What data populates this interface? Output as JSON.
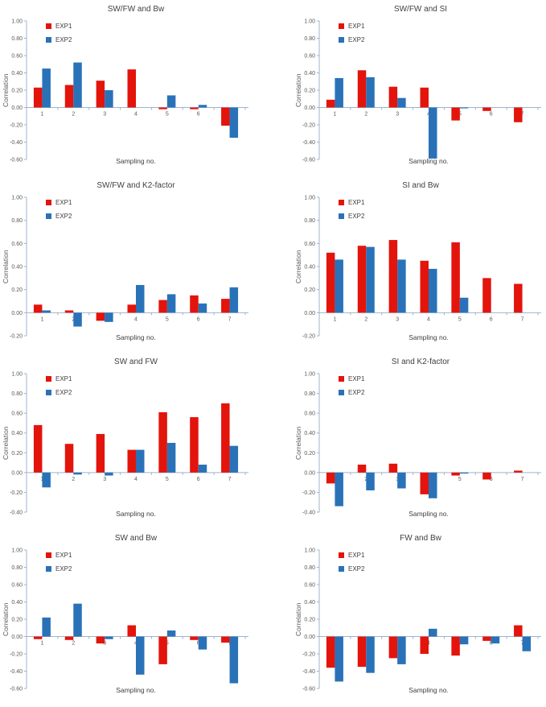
{
  "page": {
    "background": "#ffffff"
  },
  "colors": {
    "exp1": "#e3140c",
    "exp2": "#2a72b8",
    "axis": "#9db4cf",
    "tick_text": "#595959",
    "title_text": "#404040"
  },
  "legend": {
    "exp1_label": "EXP1",
    "exp2_label": "EXP2"
  },
  "chart_data": [
    {
      "type": "bar",
      "title": "SW/FW and Bw",
      "xlabel": "Sampling no.",
      "ylabel": "Correlation",
      "categories": [
        "1",
        "2",
        "3",
        "4",
        "5",
        "6",
        "7"
      ],
      "series": [
        {
          "name": "EXP1",
          "values": [
            0.23,
            0.26,
            0.31,
            0.44,
            -0.02,
            -0.02,
            -0.21
          ]
        },
        {
          "name": "EXP2",
          "values": [
            0.45,
            0.52,
            0.2,
            0,
            0.14,
            0.03,
            -0.35
          ]
        }
      ],
      "ylim": [
        -0.6,
        1.0
      ],
      "ytick_step": 0.2,
      "legend_position": "top-left",
      "grid": false
    },
    {
      "type": "bar",
      "title": "SW/FW and SI",
      "xlabel": "Sampling no.",
      "ylabel": "Correlation",
      "categories": [
        "1",
        "2",
        "3",
        "4",
        "5",
        "6",
        "7"
      ],
      "series": [
        {
          "name": "EXP1",
          "values": [
            0.09,
            0.43,
            0.24,
            0.23,
            -0.15,
            -0.04,
            -0.17
          ]
        },
        {
          "name": "EXP2",
          "values": [
            0.34,
            0.35,
            0.11,
            -0.59,
            -0.01,
            0,
            0
          ]
        }
      ],
      "ylim": [
        -0.6,
        1.0
      ],
      "ytick_step": 0.2,
      "legend_position": "top-left",
      "grid": false
    },
    {
      "type": "bar",
      "title": "SW/FW and K2-factor",
      "xlabel": "Sampling no.",
      "ylabel": "Correlation",
      "categories": [
        "1",
        "2",
        "3",
        "4",
        "5",
        "6",
        "7"
      ],
      "series": [
        {
          "name": "EXP1",
          "values": [
            0.07,
            0.02,
            -0.07,
            0.07,
            0.11,
            0.15,
            0.12
          ]
        },
        {
          "name": "EXP2",
          "values": [
            0.02,
            -0.12,
            -0.08,
            0.24,
            0.16,
            0.08,
            0.22
          ]
        }
      ],
      "ylim": [
        -0.2,
        1.0
      ],
      "ytick_step": 0.2,
      "legend_position": "top-left",
      "grid": false
    },
    {
      "type": "bar",
      "title": "SI and Bw",
      "xlabel": "Sampling no.",
      "ylabel": "Correlation",
      "categories": [
        "1",
        "2",
        "3",
        "4",
        "5",
        "6",
        "7"
      ],
      "series": [
        {
          "name": "EXP1",
          "values": [
            0.52,
            0.58,
            0.63,
            0.45,
            0.61,
            0.3,
            0.25
          ]
        },
        {
          "name": "EXP2",
          "values": [
            0.46,
            0.57,
            0.46,
            0.38,
            0.13,
            0,
            0
          ]
        }
      ],
      "ylim": [
        -0.2,
        1.0
      ],
      "ytick_step": 0.2,
      "legend_position": "top-left",
      "grid": false
    },
    {
      "type": "bar",
      "title": "SW and FW",
      "xlabel": "Sampling no.",
      "ylabel": "Correlation",
      "categories": [
        "1",
        "2",
        "3",
        "4",
        "5",
        "6",
        "7"
      ],
      "series": [
        {
          "name": "EXP1",
          "values": [
            0.48,
            0.29,
            0.39,
            0.23,
            0.61,
            0.56,
            0.7
          ]
        },
        {
          "name": "EXP2",
          "values": [
            -0.15,
            -0.02,
            -0.03,
            0.23,
            0.3,
            0.08,
            0.27
          ]
        }
      ],
      "ylim": [
        -0.4,
        1.0
      ],
      "ytick_step": 0.2,
      "legend_position": "top-left",
      "grid": false
    },
    {
      "type": "bar",
      "title": "SI and K2-factor",
      "xlabel": "Sampling no.",
      "ylabel": "Correlation",
      "categories": [
        "1",
        "2",
        "3",
        "4",
        "5",
        "6",
        "7"
      ],
      "series": [
        {
          "name": "EXP1",
          "values": [
            -0.11,
            0.08,
            0.09,
            -0.22,
            -0.03,
            -0.07,
            0.02
          ]
        },
        {
          "name": "EXP2",
          "values": [
            -0.34,
            -0.18,
            -0.16,
            -0.26,
            -0.01,
            0,
            0
          ]
        }
      ],
      "ylim": [
        -0.4,
        1.0
      ],
      "ytick_step": 0.2,
      "legend_position": "top-left",
      "grid": false
    },
    {
      "type": "bar",
      "title": "SW and Bw",
      "xlabel": "Sampling no.",
      "ylabel": "Correlation",
      "categories": [
        "1",
        "2",
        "3",
        "4",
        "5",
        "6",
        "7"
      ],
      "series": [
        {
          "name": "EXP1",
          "values": [
            -0.03,
            -0.04,
            -0.08,
            0.13,
            -0.32,
            -0.04,
            -0.07
          ]
        },
        {
          "name": "EXP2",
          "values": [
            0.22,
            0.38,
            -0.03,
            -0.44,
            0.07,
            -0.15,
            -0.54
          ]
        }
      ],
      "ylim": [
        -0.6,
        1.0
      ],
      "ytick_step": 0.2,
      "legend_position": "top-left",
      "grid": false
    },
    {
      "type": "bar",
      "title": "FW and Bw",
      "xlabel": "Sampling no.",
      "ylabel": "Correlation",
      "categories": [
        "1",
        "2",
        "3",
        "4",
        "5",
        "6",
        "7"
      ],
      "series": [
        {
          "name": "EXP1",
          "values": [
            -0.36,
            -0.35,
            -0.25,
            -0.2,
            -0.22,
            -0.05,
            0.13
          ]
        },
        {
          "name": "EXP2",
          "values": [
            -0.52,
            -0.42,
            -0.32,
            0.09,
            -0.09,
            -0.08,
            -0.17
          ]
        }
      ],
      "ylim": [
        -0.6,
        1.0
      ],
      "ytick_step": 0.2,
      "legend_position": "top-left",
      "grid": false
    }
  ]
}
